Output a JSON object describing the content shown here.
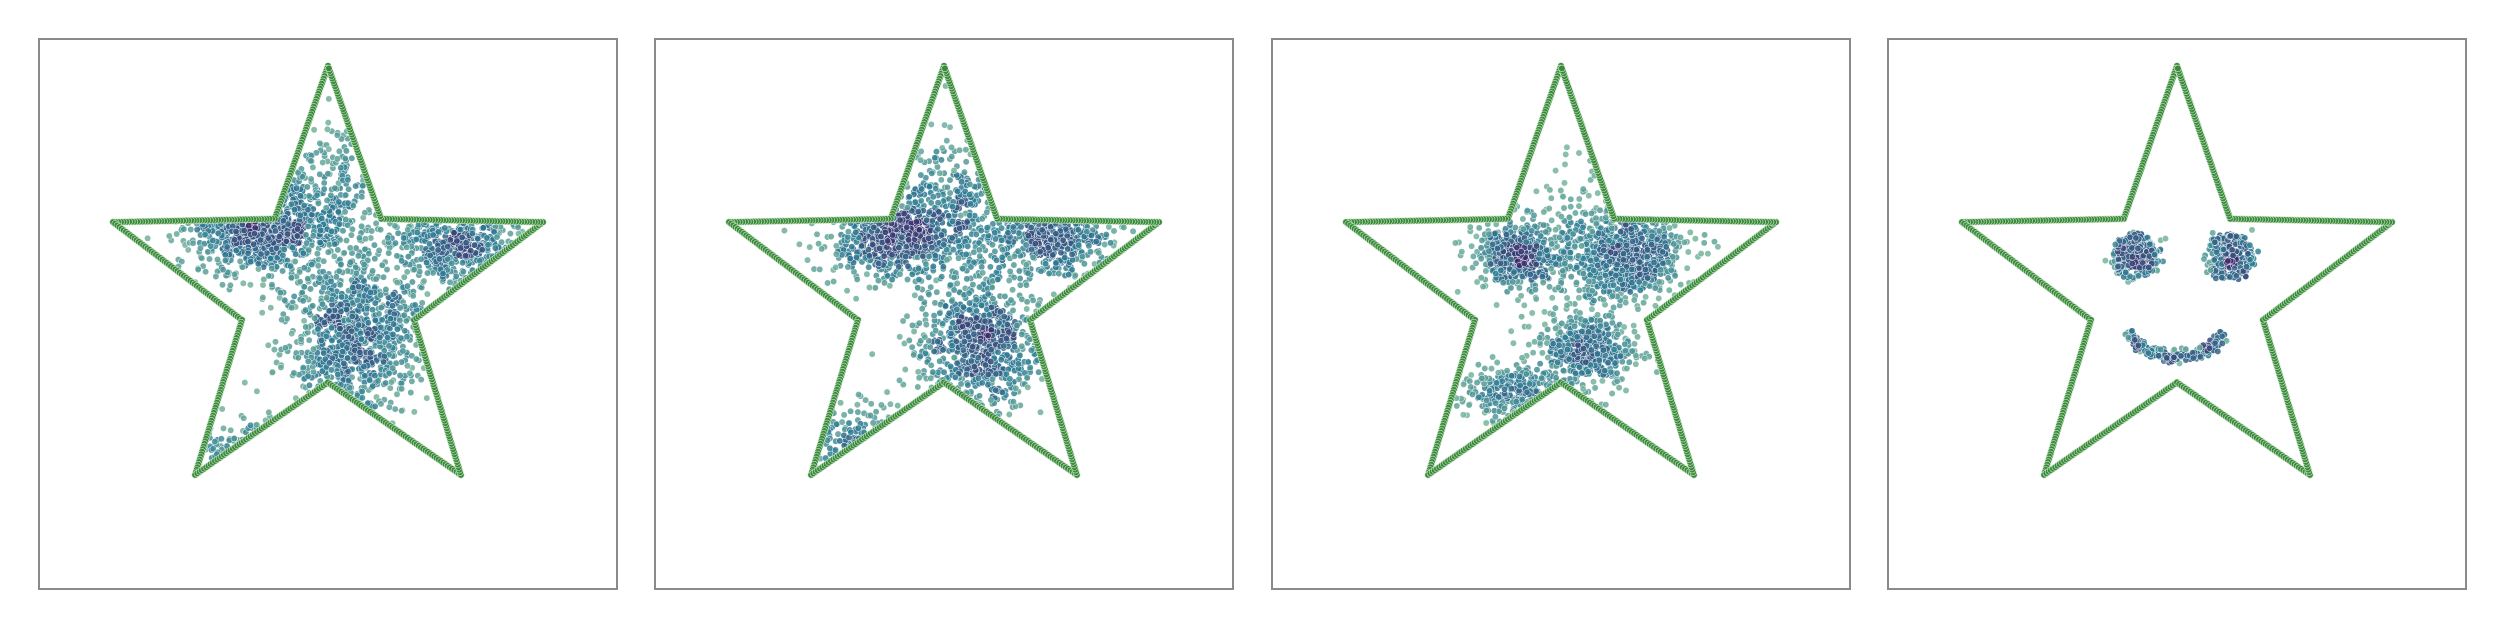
{
  "figure": {
    "panel_count": 4,
    "axes_visible": false,
    "grid": false,
    "title": "",
    "caption": ""
  },
  "chart_data": [
    {
      "type": "scatter",
      "title": "",
      "xlabel": "",
      "ylabel": "",
      "xlim": [
        -1.0,
        1.0
      ],
      "ylim": [
        -1.0,
        1.0
      ],
      "boundary": {
        "shape": "star",
        "points": 5,
        "outer_radius": 0.95,
        "inner_radius": 0.38,
        "color": "#3a8a3a"
      },
      "colormap": "crest",
      "colors": {
        "dense": "#3b2d6e",
        "mid": "#2e7d94",
        "sparse": "#8cc49e"
      },
      "clusters": [
        {
          "cx": -0.28,
          "cy": 0.27,
          "sx": 0.15,
          "sy": 0.1,
          "n": 900
        },
        {
          "cx": 0.55,
          "cy": 0.2,
          "sx": 0.14,
          "sy": 0.08,
          "n": 500
        },
        {
          "cx": 0.12,
          "cy": -0.18,
          "sx": 0.15,
          "sy": 0.17,
          "n": 1000
        },
        {
          "cx": -0.35,
          "cy": -0.68,
          "sx": 0.12,
          "sy": 0.07,
          "n": 260
        },
        {
          "cx": 0.05,
          "cy": 0.42,
          "sx": 0.12,
          "sy": 0.17,
          "n": 280
        }
      ]
    },
    {
      "type": "scatter",
      "title": "",
      "xlabel": "",
      "ylabel": "",
      "xlim": [
        -1.0,
        1.0
      ],
      "ylim": [
        -1.0,
        1.0
      ],
      "boundary": {
        "shape": "star",
        "points": 5,
        "outer_radius": 0.95,
        "inner_radius": 0.38,
        "color": "#3a8a3a"
      },
      "colormap": "crest",
      "colors": {
        "dense": "#3b2d6e",
        "mid": "#2e7d94",
        "sparse": "#8cc49e"
      },
      "clusters": [
        {
          "cx": -0.2,
          "cy": 0.25,
          "sx": 0.14,
          "sy": 0.1,
          "n": 700
        },
        {
          "cx": 0.45,
          "cy": 0.22,
          "sx": 0.13,
          "sy": 0.09,
          "n": 450
        },
        {
          "cx": 0.15,
          "cy": -0.22,
          "sx": 0.13,
          "sy": 0.13,
          "n": 750
        },
        {
          "cx": -0.35,
          "cy": -0.62,
          "sx": 0.12,
          "sy": 0.08,
          "n": 260
        },
        {
          "cx": 0.05,
          "cy": 0.35,
          "sx": 0.16,
          "sy": 0.18,
          "n": 380
        }
      ]
    },
    {
      "type": "scatter",
      "title": "",
      "xlabel": "",
      "ylabel": "",
      "xlim": [
        -1.0,
        1.0
      ],
      "ylim": [
        -1.0,
        1.0
      ],
      "boundary": {
        "shape": "star",
        "points": 5,
        "outer_radius": 0.95,
        "inner_radius": 0.38,
        "color": "#3a8a3a"
      },
      "colormap": "crest",
      "colors": {
        "dense": "#3b2d6e",
        "mid": "#2e7d94",
        "sparse": "#8cc49e"
      },
      "clusters": [
        {
          "cx": -0.18,
          "cy": 0.15,
          "sx": 0.09,
          "sy": 0.07,
          "n": 500
        },
        {
          "cx": 0.3,
          "cy": 0.15,
          "sx": 0.12,
          "sy": 0.09,
          "n": 600
        },
        {
          "cx": 0.1,
          "cy": -0.25,
          "sx": 0.11,
          "sy": 0.08,
          "n": 450
        },
        {
          "cx": -0.18,
          "cy": -0.43,
          "sx": 0.12,
          "sy": 0.06,
          "n": 300
        },
        {
          "cx": 0.1,
          "cy": 0.2,
          "sx": 0.12,
          "sy": 0.18,
          "n": 300
        }
      ]
    },
    {
      "type": "scatter",
      "title": "",
      "xlabel": "",
      "ylabel": "",
      "xlim": [
        -1.0,
        1.0
      ],
      "ylim": [
        -1.0,
        1.0
      ],
      "boundary": {
        "shape": "star",
        "points": 5,
        "outer_radius": 0.95,
        "inner_radius": 0.38,
        "color": "#3a8a3a"
      },
      "colormap": "crest",
      "colors": {
        "dense": "#3b2d6e",
        "mid": "#2e7d94",
        "sparse": "#8cc49e"
      },
      "clusters": [
        {
          "cx": -0.18,
          "cy": 0.15,
          "sx": 0.045,
          "sy": 0.04,
          "n": 160
        },
        {
          "cx": 0.22,
          "cy": 0.15,
          "sx": 0.045,
          "sy": 0.04,
          "n": 160
        }
      ],
      "rings": [
        {
          "cx": -0.18,
          "cy": 0.15,
          "r": 0.085,
          "n": 120
        },
        {
          "cx": 0.22,
          "cy": 0.15,
          "r": 0.085,
          "n": 120
        }
      ],
      "arcs": [
        {
          "cx": 0.0,
          "cy": -0.15,
          "rx": 0.2,
          "ry": 0.12,
          "n": 240
        }
      ]
    }
  ]
}
